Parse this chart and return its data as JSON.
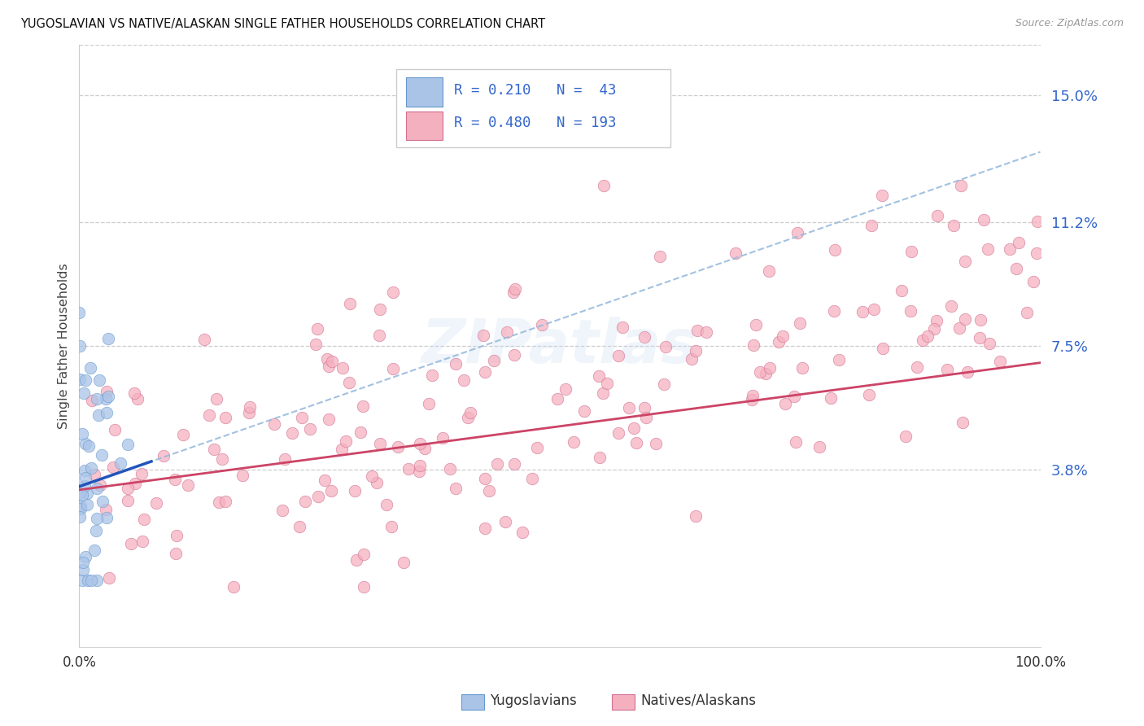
{
  "title": "YUGOSLAVIAN VS NATIVE/ALASKAN SINGLE FATHER HOUSEHOLDS CORRELATION CHART",
  "source": "Source: ZipAtlas.com",
  "ylabel": "Single Father Households",
  "ytick_values": [
    0.038,
    0.075,
    0.112,
    0.15
  ],
  "ytick_labels": [
    "3.8%",
    "7.5%",
    "11.2%",
    "15.0%"
  ],
  "xlim": [
    0.0,
    1.0
  ],
  "ylim": [
    -0.015,
    0.165
  ],
  "yug_fill": "#aac4e8",
  "yug_edge": "#6699cc",
  "nat_fill": "#f5b0c0",
  "nat_edge": "#d07090",
  "trend_blue_solid": "#2255bb",
  "trend_pink_solid": "#cc4466",
  "trend_blue_dash": "#99bbdd",
  "legend_text_dark": "#333333",
  "legend_text_blue": "#3366cc",
  "ytick_color": "#3366cc",
  "xtick_color": "#333333",
  "grid_color": "#cccccc",
  "R_yug": 0.21,
  "N_yug": 43,
  "R_nat": 0.48,
  "N_nat": 193,
  "legend_label_yug": "Yugoslavians",
  "legend_label_nat": "Natives/Alaskans",
  "watermark": "ZIPatlas"
}
